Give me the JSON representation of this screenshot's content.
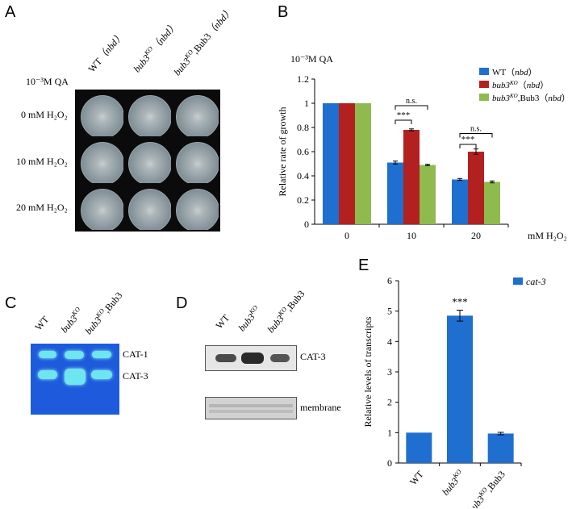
{
  "panels": {
    "a": "A",
    "b": "B",
    "c": "C",
    "d": "D",
    "e": "E"
  },
  "panel_a": {
    "qa_label": "10⁻³M QA",
    "columns": [
      {
        "prefix": "WT",
        "suffix": "（nbd）"
      },
      {
        "prefix": "bub3",
        "sup": "KO",
        "suffix": "（nbd）"
      },
      {
        "prefix": "bub3",
        "sup": "KO",
        "mid": ",Bub3",
        "suffix": "（nbd）"
      }
    ],
    "rows": [
      "0 mM H₂O₂",
      "10 mM H₂O₂",
      "20 mM H₂O₂"
    ]
  },
  "panel_c": {
    "columns": [
      "WT",
      "bub3KO",
      "bub3KO,Bub3"
    ],
    "bands": [
      "CAT-1",
      "CAT-3"
    ]
  },
  "panel_d": {
    "columns": [
      "WT",
      "bub3KO",
      "bub3KO,Bub3"
    ],
    "bands": [
      "CAT-3",
      "membrane"
    ]
  },
  "chart_data": [
    {
      "type": "bar",
      "panel": "B",
      "top_label": "10⁻³M QA",
      "ylabel": "Relative rate of growth",
      "xlabel": "mM H₂O₂",
      "categories": [
        "0",
        "10",
        "20"
      ],
      "ylim": [
        0,
        1.2
      ],
      "yticks": [
        "0",
        "0.2",
        "0.4",
        "0.6",
        "0.8",
        "1",
        "1.2"
      ],
      "series": [
        {
          "name": "WT（nbd）",
          "color": "#1f6fd0",
          "values": [
            1.0,
            0.51,
            0.37
          ],
          "errors": [
            0,
            0.012,
            0.008
          ]
        },
        {
          "name": "bub3KO（nbd）",
          "color": "#b32020",
          "values": [
            1.0,
            0.78,
            0.6
          ],
          "errors": [
            0,
            0.008,
            0.022
          ]
        },
        {
          "name": "bub3KO,Bub3（nbd）",
          "color": "#8fba4e",
          "values": [
            1.0,
            0.49,
            0.35
          ],
          "errors": [
            0,
            0.006,
            0.008
          ]
        }
      ],
      "annotations": [
        {
          "group": "10",
          "text": "***",
          "pair": [
            0,
            1
          ]
        },
        {
          "group": "10",
          "text": "n.s.",
          "pair": [
            0,
            2
          ]
        },
        {
          "group": "20",
          "text": "***",
          "pair": [
            0,
            1
          ]
        },
        {
          "group": "20",
          "text": "n.s.",
          "pair": [
            0,
            2
          ]
        }
      ],
      "legend_position": "top-right"
    },
    {
      "type": "bar",
      "panel": "E",
      "ylabel": "Relative levels of transcripts",
      "categories": [
        "WT",
        "bub3KO",
        "bub3KO,Bub3"
      ],
      "ylim": [
        0,
        6
      ],
      "yticks": [
        "0",
        "1",
        "2",
        "3",
        "4",
        "5",
        "6"
      ],
      "series": [
        {
          "name": "cat-3",
          "color": "#1f6fd0",
          "values": [
            1.0,
            4.85,
            0.97
          ],
          "errors": [
            0,
            0.18,
            0.04
          ]
        }
      ],
      "annotations": [
        {
          "category": "bub3KO",
          "text": "***"
        }
      ],
      "legend_position": "top-right"
    }
  ]
}
